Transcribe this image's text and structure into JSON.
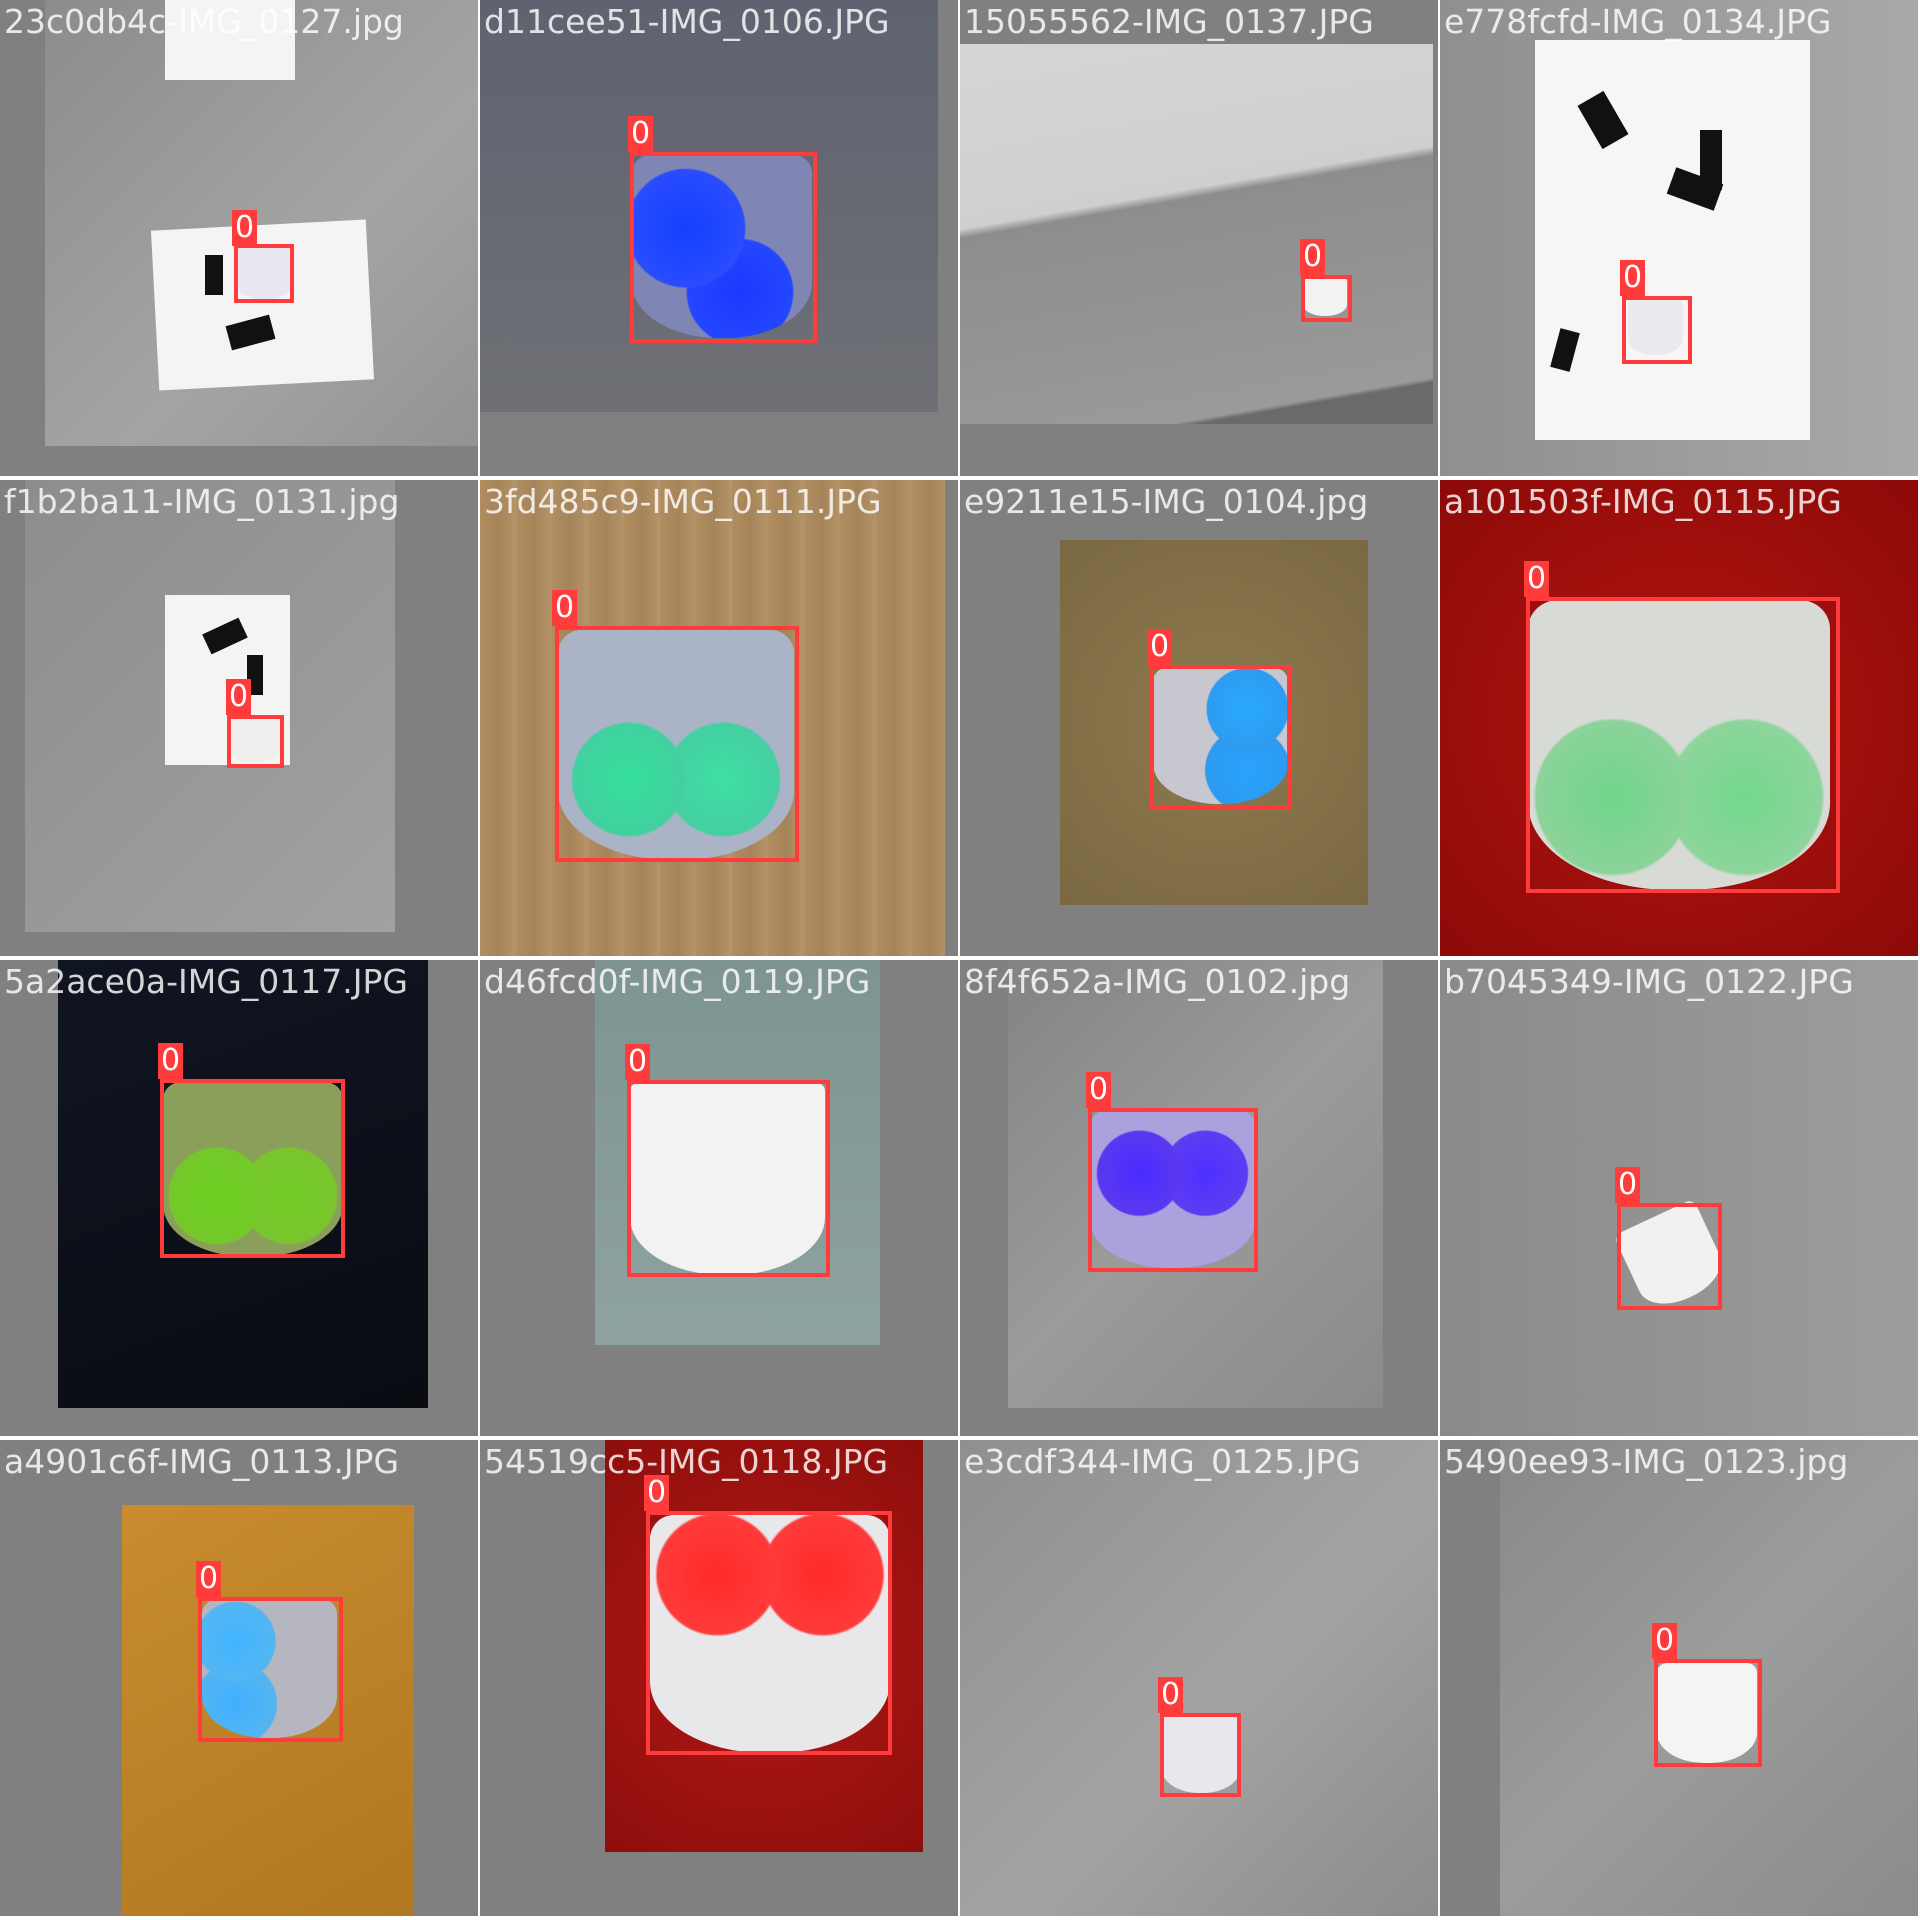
{
  "colors": {
    "box": "#ff3b3b",
    "tile_bg": "#808080",
    "label_text": "#ffffff"
  },
  "tiles": [
    {
      "filename": "23c0db4c-IMG_0127.jpg",
      "label": "0"
    },
    {
      "filename": "d11cee51-IMG_0106.JPG",
      "label": "0"
    },
    {
      "filename": "15055562-IMG_0137.JPG",
      "label": "0"
    },
    {
      "filename": "e778fcfd-IMG_0134.JPG",
      "label": "0"
    },
    {
      "filename": "f1b2ba11-IMG_0131.jpg",
      "label": "0"
    },
    {
      "filename": "3fd485c9-IMG_0111.JPG",
      "label": "0"
    },
    {
      "filename": "e9211e15-IMG_0104.jpg",
      "label": "0"
    },
    {
      "filename": "a101503f-IMG_0115.JPG",
      "label": "0"
    },
    {
      "filename": "5a2ace0a-IMG_0117.JPG",
      "label": "0"
    },
    {
      "filename": "d46fcd0f-IMG_0119.JPG",
      "label": "0"
    },
    {
      "filename": "8f4f652a-IMG_0102.jpg",
      "label": "0"
    },
    {
      "filename": "b7045349-IMG_0122.JPG",
      "label": "0"
    },
    {
      "filename": "a4901c6f-IMG_0113.JPG",
      "label": "0"
    },
    {
      "filename": "54519cc5-IMG_0118.JPG",
      "label": "0"
    },
    {
      "filename": "e3cdf344-IMG_0125.JPG",
      "label": "0"
    },
    {
      "filename": "5490ee93-IMG_0123.jpg",
      "label": "0"
    }
  ]
}
